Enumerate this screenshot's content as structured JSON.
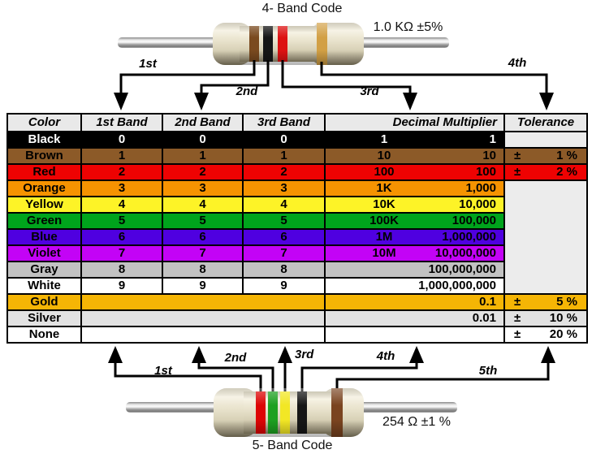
{
  "top_resistor": {
    "title": "4- Band Code",
    "value_label": "1.0 KΩ  ±5%",
    "band_labels": [
      "1st",
      "2nd",
      "3rd",
      "4th"
    ],
    "bands": [
      {
        "name": "brown",
        "hex": "#7a4a1f"
      },
      {
        "name": "black",
        "hex": "#161616"
      },
      {
        "name": "red",
        "hex": "#dd1212"
      },
      {
        "name": "gold",
        "hex": "#d2a045"
      }
    ]
  },
  "bottom_resistor": {
    "title": "5- Band Code",
    "value_label": "254 Ω  ±1 %",
    "band_labels": [
      "1st",
      "2nd",
      "3rd",
      "4th",
      "5th"
    ],
    "bands": [
      {
        "name": "red",
        "hex": "#dd0505"
      },
      {
        "name": "green",
        "hex": "#1ea021"
      },
      {
        "name": "yellow",
        "hex": "#f2e725"
      },
      {
        "name": "black",
        "hex": "#161616"
      },
      {
        "name": "brown",
        "hex": "#7a4420"
      }
    ]
  },
  "table": {
    "headers": [
      "Color",
      "1st Band",
      "2nd Band",
      "3rd Band",
      "Decimal Multiplier",
      "Tolerance"
    ],
    "border_hex": "#000000",
    "header_bg": "#e9e9e9",
    "blank_tolerance_bg": "#ececec",
    "rows": [
      {
        "color": "Black",
        "bg": "#000000",
        "fg": "#ffffff",
        "bands": [
          "0",
          "0",
          "0"
        ],
        "mult_short": "1",
        "mult_full": "1",
        "tol": {
          "type": "own",
          "sign": "",
          "value": "",
          "bg": "#ececec"
        }
      },
      {
        "color": "Brown",
        "bg": "#8c5a28",
        "fg": "#000000",
        "bands": [
          "1",
          "1",
          "1"
        ],
        "mult_short": "10",
        "mult_full": "10",
        "tol": {
          "type": "own",
          "sign": "±",
          "value": "1 %"
        }
      },
      {
        "color": "Red",
        "bg": "#ee0202",
        "fg": "#000000",
        "bands": [
          "2",
          "2",
          "2"
        ],
        "mult_short": "100",
        "mult_full": "100",
        "tol": {
          "type": "own",
          "sign": "±",
          "value": "2 %"
        }
      },
      {
        "color": "Orange",
        "bg": "#f69301",
        "fg": "#000000",
        "bands": [
          "3",
          "3",
          "3"
        ],
        "mult_short": "1K",
        "mult_full": "1,000",
        "tol": {
          "type": "merged",
          "span": 7,
          "bg": "#ececec"
        }
      },
      {
        "color": "Yellow",
        "bg": "#fdf327",
        "fg": "#000000",
        "bands": [
          "4",
          "4",
          "4"
        ],
        "mult_short": "10K",
        "mult_full": "10,000",
        "tol": {
          "type": "skip"
        }
      },
      {
        "color": "Green",
        "bg": "#00a41c",
        "fg": "#000000",
        "bands": [
          "5",
          "5",
          "5"
        ],
        "mult_short": "100K",
        "mult_full": "100,000",
        "tol": {
          "type": "skip"
        }
      },
      {
        "color": "Blue",
        "bg": "#4f00e0",
        "fg": "#000000",
        "bands": [
          "6",
          "6",
          "6"
        ],
        "mult_short": "1M",
        "mult_full": "1,000,000",
        "tol": {
          "type": "skip"
        }
      },
      {
        "color": "Violet",
        "bg": "#c303f6",
        "fg": "#000000",
        "bands": [
          "7",
          "7",
          "7"
        ],
        "mult_short": "10M",
        "mult_full": "10,000,000",
        "tol": {
          "type": "skip"
        }
      },
      {
        "color": "Gray",
        "bg": "#c2c2c2",
        "fg": "#000000",
        "bands": [
          "8",
          "8",
          "8"
        ],
        "mult_short": "",
        "mult_full": "100,000,000",
        "tol": {
          "type": "skip"
        }
      },
      {
        "color": "White",
        "bg": "#ffffff",
        "fg": "#000000",
        "bands": [
          "9",
          "9",
          "9"
        ],
        "mult_short": "",
        "mult_full": "1,000,000,000",
        "tol": {
          "type": "skip"
        }
      },
      {
        "color": "Gold",
        "bg": "#f5b505",
        "fg": "#000000",
        "bands": null,
        "mult_short": "",
        "mult_full": "0.1",
        "tol": {
          "type": "own",
          "sign": "±",
          "value": "5 %"
        }
      },
      {
        "color": "Silver",
        "bg": "#e2e2e2",
        "fg": "#000000",
        "bands": null,
        "mult_short": "",
        "mult_full": "0.01",
        "tol": {
          "type": "own",
          "sign": "±",
          "value": "10 %"
        }
      },
      {
        "color": "None",
        "bg": "#ffffff",
        "fg": "#000000",
        "bands": null,
        "mult_short": "",
        "mult_full": "",
        "tol": {
          "type": "own",
          "sign": "±",
          "value": "20 %"
        }
      }
    ]
  }
}
